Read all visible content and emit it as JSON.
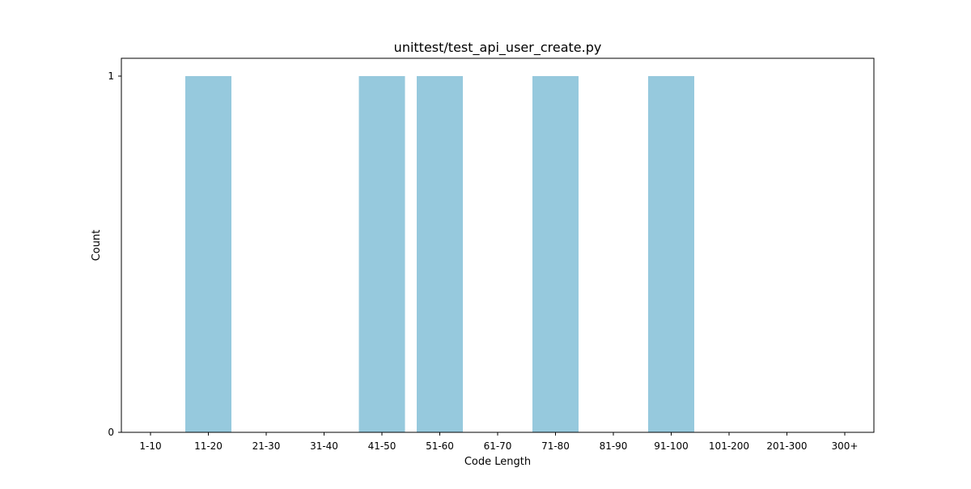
{
  "chart_data": {
    "type": "bar",
    "title": "unittest/test_api_user_create.py",
    "xlabel": "Code Length",
    "ylabel": "Count",
    "categories": [
      "1-10",
      "11-20",
      "21-30",
      "31-40",
      "41-50",
      "51-60",
      "61-70",
      "71-80",
      "81-90",
      "91-100",
      "101-200",
      "201-300",
      "300+"
    ],
    "values": [
      0,
      1,
      0,
      0,
      1,
      1,
      0,
      1,
      0,
      1,
      0,
      0,
      0
    ],
    "yticks": [
      0,
      1
    ],
    "ylim": [
      0,
      1.05
    ],
    "grid": false,
    "legend": "none",
    "bar_color": "#96c9dd"
  }
}
